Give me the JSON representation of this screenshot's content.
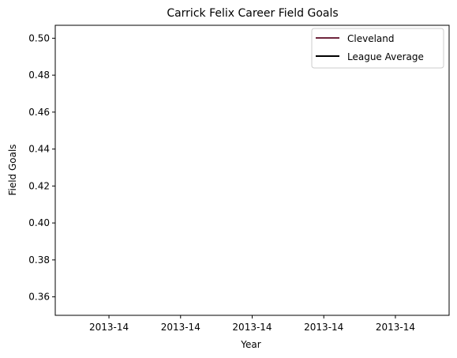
{
  "chart_data": {
    "type": "line",
    "title": "Carrick Felix Career Field Goals",
    "xlabel": "Year",
    "ylabel": "Field Goals",
    "x_tick_labels": [
      "2013-14",
      "2013-14",
      "2013-14",
      "2013-14",
      "2013-14"
    ],
    "x_tick_positions": [
      -0.04,
      -0.02,
      0.0,
      0.02,
      0.04
    ],
    "xlim": [
      -0.055,
      0.055
    ],
    "ylim": [
      0.35,
      0.507
    ],
    "y_ticks": [
      0.36,
      0.38,
      0.4,
      0.42,
      0.44,
      0.46,
      0.48,
      0.5
    ],
    "y_tick_labels": [
      "0.36",
      "0.38",
      "0.40",
      "0.42",
      "0.44",
      "0.46",
      "0.48",
      "0.50"
    ],
    "grid": false,
    "legend_position": "top-right",
    "series": [
      {
        "name": "Cleveland",
        "color": "#6f263d",
        "x": [],
        "y": []
      },
      {
        "name": "League Average",
        "color": "#000000",
        "x": [],
        "y": []
      }
    ]
  }
}
